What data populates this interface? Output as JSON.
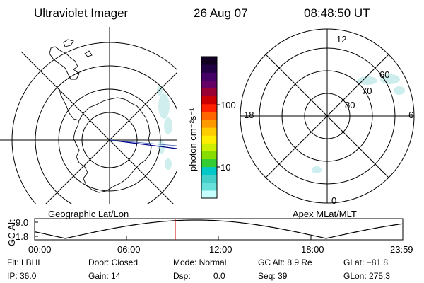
{
  "header": {
    "instrument": "Ultraviolet Imager",
    "date": "26 Aug 07",
    "time": "08:48:50 UT"
  },
  "left_panel": {
    "caption": "Geographic Lat/Lon"
  },
  "right_panel": {
    "caption": "Apex MLat/MLT",
    "mlt_labels": [
      "12",
      "18",
      "6",
      "0"
    ],
    "lat_labels": [
      "60",
      "70",
      "80"
    ]
  },
  "colorbar": {
    "unit": "photon cm⁻²s⁻¹",
    "ticks": [
      "100",
      "10"
    ],
    "colors": [
      "#c8ffff",
      "#66e0d8",
      "#44d0c8",
      "#00c8c8",
      "#33cc33",
      "#88dd00",
      "#ccee00",
      "#ffee00",
      "#ffcc00",
      "#ff9900",
      "#ff6600",
      "#ff2200",
      "#cc0000",
      "#990033",
      "#660066",
      "#440066",
      "#220044",
      "#110022"
    ]
  },
  "altitude_plot": {
    "ylabel": "GC Alt",
    "yticks": [
      "9.0",
      "1.8"
    ],
    "xticks": [
      "00:00",
      "06:00",
      "12:00",
      "18:00",
      "23:59"
    ],
    "marker_color": "#cc0000"
  },
  "footer": {
    "filter": "Flt: LBHL",
    "ip": "IP: 36.0",
    "door": "Door: Closed",
    "gain": "Gain: 14",
    "mode": "Mode: Normal",
    "dsp_label": "Dsp:",
    "dsp_value": "0.0",
    "gc_alt": "GC Alt: 8.9 Re",
    "seq": "Seq: 39",
    "glat": "GLat: −81.8",
    "glon": "GLon: 275.3"
  }
}
